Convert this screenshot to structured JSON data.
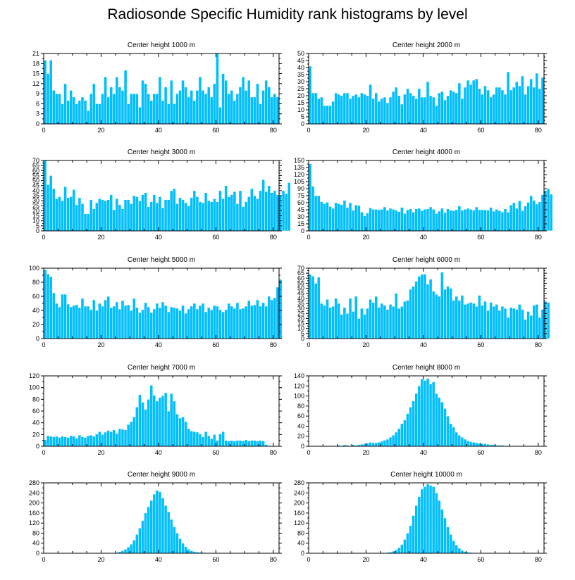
{
  "title": "Radiosonde Specific Humidity rank histograms by level",
  "colors": {
    "bar": "#00bfff",
    "bar_edge": "#ffffff",
    "axis": "#000000"
  },
  "chart_data": [
    {
      "type": "bar",
      "title": "Center height 1000 m",
      "xlim": [
        0,
        82
      ],
      "ylim": [
        0,
        21
      ],
      "xticks": [
        0,
        20,
        40,
        60,
        80
      ],
      "yticks": [
        0,
        3,
        6,
        9,
        12,
        15,
        18,
        21
      ],
      "values": [
        19,
        15,
        19,
        10,
        9,
        9,
        6,
        12,
        7,
        10,
        8,
        6,
        7,
        8,
        7,
        4,
        9,
        12,
        6,
        6,
        9,
        14,
        8,
        11,
        9,
        14,
        11,
        10,
        16,
        6,
        9,
        9,
        9,
        5,
        13,
        12,
        9,
        7,
        9,
        9,
        14,
        7,
        11,
        6,
        13,
        6,
        9,
        10,
        13,
        11,
        8,
        10,
        7,
        10,
        14,
        10,
        9,
        11,
        8,
        12,
        21,
        5,
        15,
        13,
        9,
        10,
        7,
        9,
        11,
        14,
        10,
        13,
        8,
        8,
        12,
        6,
        10,
        13,
        11,
        8,
        9,
        8
      ]
    },
    {
      "type": "bar",
      "title": "Center height 2000 m",
      "xlim": [
        0,
        82
      ],
      "ylim": [
        0,
        50
      ],
      "xticks": [
        0,
        20,
        40,
        60,
        80
      ],
      "yticks": [
        0,
        5,
        10,
        15,
        20,
        25,
        30,
        35,
        40,
        45,
        50
      ],
      "values": [
        41,
        22,
        22,
        18,
        19,
        13,
        13,
        13,
        16,
        22,
        21,
        20,
        22,
        22,
        18,
        20,
        21,
        19,
        22,
        21,
        20,
        28,
        18,
        22,
        16,
        18,
        19,
        15,
        19,
        23,
        26,
        20,
        14,
        21,
        25,
        22,
        20,
        18,
        25,
        19,
        19,
        30,
        20,
        19,
        13,
        22,
        23,
        17,
        20,
        24,
        23,
        22,
        29,
        18,
        26,
        31,
        28,
        31,
        32,
        25,
        21,
        27,
        24,
        19,
        21,
        26,
        26,
        24,
        21,
        37,
        24,
        26,
        30,
        27,
        34,
        21,
        27,
        32,
        26,
        36,
        25,
        33
      ]
    },
    {
      "type": "bar",
      "title": "Center height 3000 m",
      "xlim": [
        0,
        82
      ],
      "ylim": [
        0,
        70
      ],
      "xticks": [
        0,
        20,
        40,
        60,
        80
      ],
      "yticks": [
        0,
        5,
        10,
        15,
        20,
        25,
        30,
        35,
        40,
        45,
        50,
        55,
        60,
        65,
        70
      ],
      "values": [
        70,
        46,
        55,
        42,
        32,
        34,
        30,
        44,
        33,
        34,
        41,
        26,
        33,
        27,
        17,
        17,
        31,
        22,
        28,
        32,
        31,
        30,
        31,
        36,
        21,
        32,
        26,
        22,
        31,
        31,
        27,
        35,
        34,
        30,
        36,
        38,
        24,
        29,
        36,
        28,
        34,
        23,
        31,
        31,
        40,
        42,
        27,
        33,
        31,
        28,
        25,
        33,
        40,
        34,
        29,
        28,
        38,
        30,
        29,
        32,
        29,
        40,
        32,
        45,
        34,
        36,
        39,
        27,
        40,
        24,
        29,
        34,
        42,
        35,
        32,
        40,
        51,
        39,
        45,
        38,
        40,
        36,
        35,
        40,
        37,
        48
      ]
    },
    {
      "type": "bar",
      "title": "Center height 4000 m",
      "xlim": [
        0,
        82
      ],
      "ylim": [
        0,
        150
      ],
      "xticks": [
        0,
        20,
        40,
        60,
        80
      ],
      "yticks": [
        0,
        15,
        30,
        45,
        60,
        75,
        90,
        105,
        120,
        135,
        150
      ],
      "values": [
        143,
        95,
        75,
        75,
        62,
        58,
        61,
        52,
        48,
        60,
        58,
        56,
        65,
        50,
        60,
        44,
        55,
        54,
        40,
        32,
        38,
        49,
        46,
        46,
        45,
        46,
        51,
        44,
        48,
        46,
        44,
        41,
        50,
        37,
        45,
        47,
        40,
        47,
        48,
        43,
        46,
        47,
        51,
        46,
        37,
        42,
        48,
        39,
        47,
        44,
        43,
        45,
        53,
        44,
        46,
        48,
        46,
        44,
        51,
        45,
        45,
        45,
        44,
        50,
        42,
        46,
        43,
        40,
        47,
        40,
        55,
        60,
        48,
        64,
        43,
        53,
        61,
        75,
        65,
        57,
        62,
        77,
        86,
        90,
        78
      ]
    },
    {
      "type": "bar",
      "title": "Center height 5000 m",
      "xlim": [
        0,
        82
      ],
      "ylim": [
        0,
        100
      ],
      "xticks": [
        0,
        20,
        40,
        60,
        80
      ],
      "yticks": [
        0,
        20,
        40,
        60,
        80,
        100
      ],
      "values": [
        98,
        92,
        88,
        65,
        50,
        45,
        63,
        63,
        49,
        45,
        47,
        48,
        44,
        57,
        46,
        46,
        41,
        55,
        40,
        50,
        46,
        55,
        60,
        44,
        46,
        52,
        42,
        54,
        47,
        48,
        40,
        57,
        44,
        37,
        41,
        51,
        45,
        37,
        42,
        50,
        44,
        52,
        47,
        38,
        45,
        44,
        43,
        40,
        47,
        36,
        42,
        46,
        50,
        42,
        47,
        50,
        38,
        44,
        41,
        47,
        46,
        41,
        38,
        41,
        50,
        46,
        43,
        51,
        42,
        43,
        46,
        54,
        47,
        48,
        55,
        46,
        51,
        46,
        60,
        55,
        58,
        73,
        84
      ]
    },
    {
      "type": "bar",
      "title": "Center height 6000 m",
      "xlim": [
        0,
        82
      ],
      "ylim": [
        0,
        70
      ],
      "xticks": [
        0,
        20,
        40,
        60,
        80
      ],
      "yticks": [
        0,
        5,
        10,
        15,
        20,
        25,
        30,
        35,
        40,
        45,
        50,
        55,
        60,
        65,
        70
      ],
      "values": [
        64,
        62,
        55,
        61,
        35,
        33,
        39,
        31,
        32,
        40,
        35,
        24,
        31,
        25,
        40,
        27,
        42,
        20,
        30,
        24,
        30,
        39,
        36,
        42,
        31,
        35,
        33,
        29,
        34,
        32,
        45,
        30,
        32,
        37,
        38,
        49,
        52,
        57,
        62,
        64,
        64,
        54,
        59,
        47,
        44,
        42,
        66,
        49,
        52,
        50,
        38,
        42,
        38,
        43,
        34,
        35,
        36,
        35,
        32,
        43,
        33,
        37,
        28,
        36,
        32,
        34,
        28,
        32,
        30,
        21,
        31,
        30,
        29,
        34,
        29,
        19,
        27,
        23,
        33,
        34,
        21,
        29,
        37,
        36
      ]
    },
    {
      "type": "bar",
      "title": "Center height 7000 m",
      "xlim": [
        0,
        82
      ],
      "ylim": [
        0,
        120
      ],
      "xticks": [
        0,
        20,
        40,
        60,
        80
      ],
      "yticks": [
        0,
        20,
        40,
        60,
        80,
        100,
        120
      ],
      "values": [
        11,
        18,
        17,
        16,
        17,
        15,
        17,
        16,
        15,
        18,
        17,
        14,
        19,
        16,
        15,
        18,
        19,
        17,
        21,
        25,
        20,
        24,
        27,
        25,
        28,
        22,
        30,
        29,
        28,
        37,
        42,
        50,
        67,
        88,
        75,
        63,
        80,
        104,
        87,
        77,
        83,
        86,
        91,
        60,
        90,
        77,
        55,
        48,
        50,
        42,
        30,
        26,
        25,
        24,
        21,
        16,
        25,
        18,
        13,
        20,
        10,
        21,
        25,
        10,
        9,
        10,
        9,
        10,
        10,
        9,
        11,
        9,
        10,
        10,
        9,
        10,
        9,
        3
      ]
    },
    {
      "type": "bar",
      "title": "Center height 8000 m",
      "xlim": [
        0,
        82
      ],
      "ylim": [
        0,
        140
      ],
      "xticks": [
        0,
        20,
        40,
        60,
        80
      ],
      "yticks": [
        0,
        20,
        40,
        60,
        80,
        100,
        120,
        140
      ],
      "values": [
        0,
        0,
        0,
        0,
        0,
        1,
        0,
        1,
        1,
        1,
        2,
        1,
        3,
        2,
        1,
        3,
        2,
        3,
        4,
        5,
        6,
        8,
        7,
        7,
        8,
        10,
        12,
        14,
        18,
        22,
        28,
        35,
        45,
        52,
        65,
        78,
        90,
        105,
        120,
        134,
        131,
        135,
        124,
        128,
        105,
        97,
        88,
        75,
        60,
        45,
        38,
        28,
        22,
        18,
        14,
        11,
        9,
        8,
        7,
        6,
        5,
        5,
        4,
        3,
        3,
        2,
        2,
        2,
        1,
        1,
        1,
        0,
        0,
        0,
        0,
        0,
        0,
        0,
        0,
        0,
        0
      ]
    },
    {
      "type": "bar",
      "title": "Center height 9000 m",
      "xlim": [
        0,
        82
      ],
      "ylim": [
        0,
        280
      ],
      "xticks": [
        0,
        20,
        40,
        60,
        80
      ],
      "yticks": [
        0,
        40,
        80,
        120,
        160,
        200,
        240,
        280
      ],
      "values": [
        0,
        0,
        0,
        0,
        0,
        0,
        0,
        0,
        0,
        0,
        0,
        0,
        0,
        0,
        0,
        0,
        0,
        0,
        0,
        0,
        0,
        0,
        1,
        1,
        2,
        3,
        6,
        10,
        16,
        25,
        36,
        52,
        75,
        100,
        130,
        160,
        185,
        210,
        235,
        250,
        245,
        220,
        190,
        165,
        135,
        105,
        80,
        58,
        40,
        26,
        16,
        10,
        7,
        5,
        4,
        3,
        2,
        2,
        1,
        1,
        1,
        1,
        0,
        0,
        0,
        0,
        0,
        0,
        0,
        0,
        0,
        0,
        0,
        0,
        0,
        0,
        0,
        0,
        0,
        0,
        0
      ]
    },
    {
      "type": "bar",
      "title": "Center height 10000 m",
      "xlim": [
        0,
        82
      ],
      "ylim": [
        0,
        280
      ],
      "xticks": [
        0,
        20,
        40,
        60,
        80
      ],
      "yticks": [
        0,
        40,
        80,
        120,
        160,
        200,
        240,
        280
      ],
      "values": [
        0,
        0,
        0,
        0,
        0,
        0,
        0,
        0,
        0,
        0,
        0,
        0,
        0,
        0,
        0,
        0,
        0,
        0,
        0,
        0,
        0,
        0,
        0,
        0,
        1,
        1,
        2,
        3,
        5,
        8,
        13,
        22,
        35,
        55,
        80,
        110,
        150,
        190,
        225,
        255,
        265,
        275,
        270,
        265,
        240,
        210,
        175,
        140,
        105,
        75,
        50,
        33,
        20,
        12,
        7,
        4,
        3,
        2,
        1,
        1,
        1,
        1,
        0,
        0,
        0,
        0,
        0,
        0,
        0,
        0,
        0,
        0,
        0,
        0,
        0,
        0,
        0,
        0,
        0,
        0,
        0
      ]
    }
  ]
}
